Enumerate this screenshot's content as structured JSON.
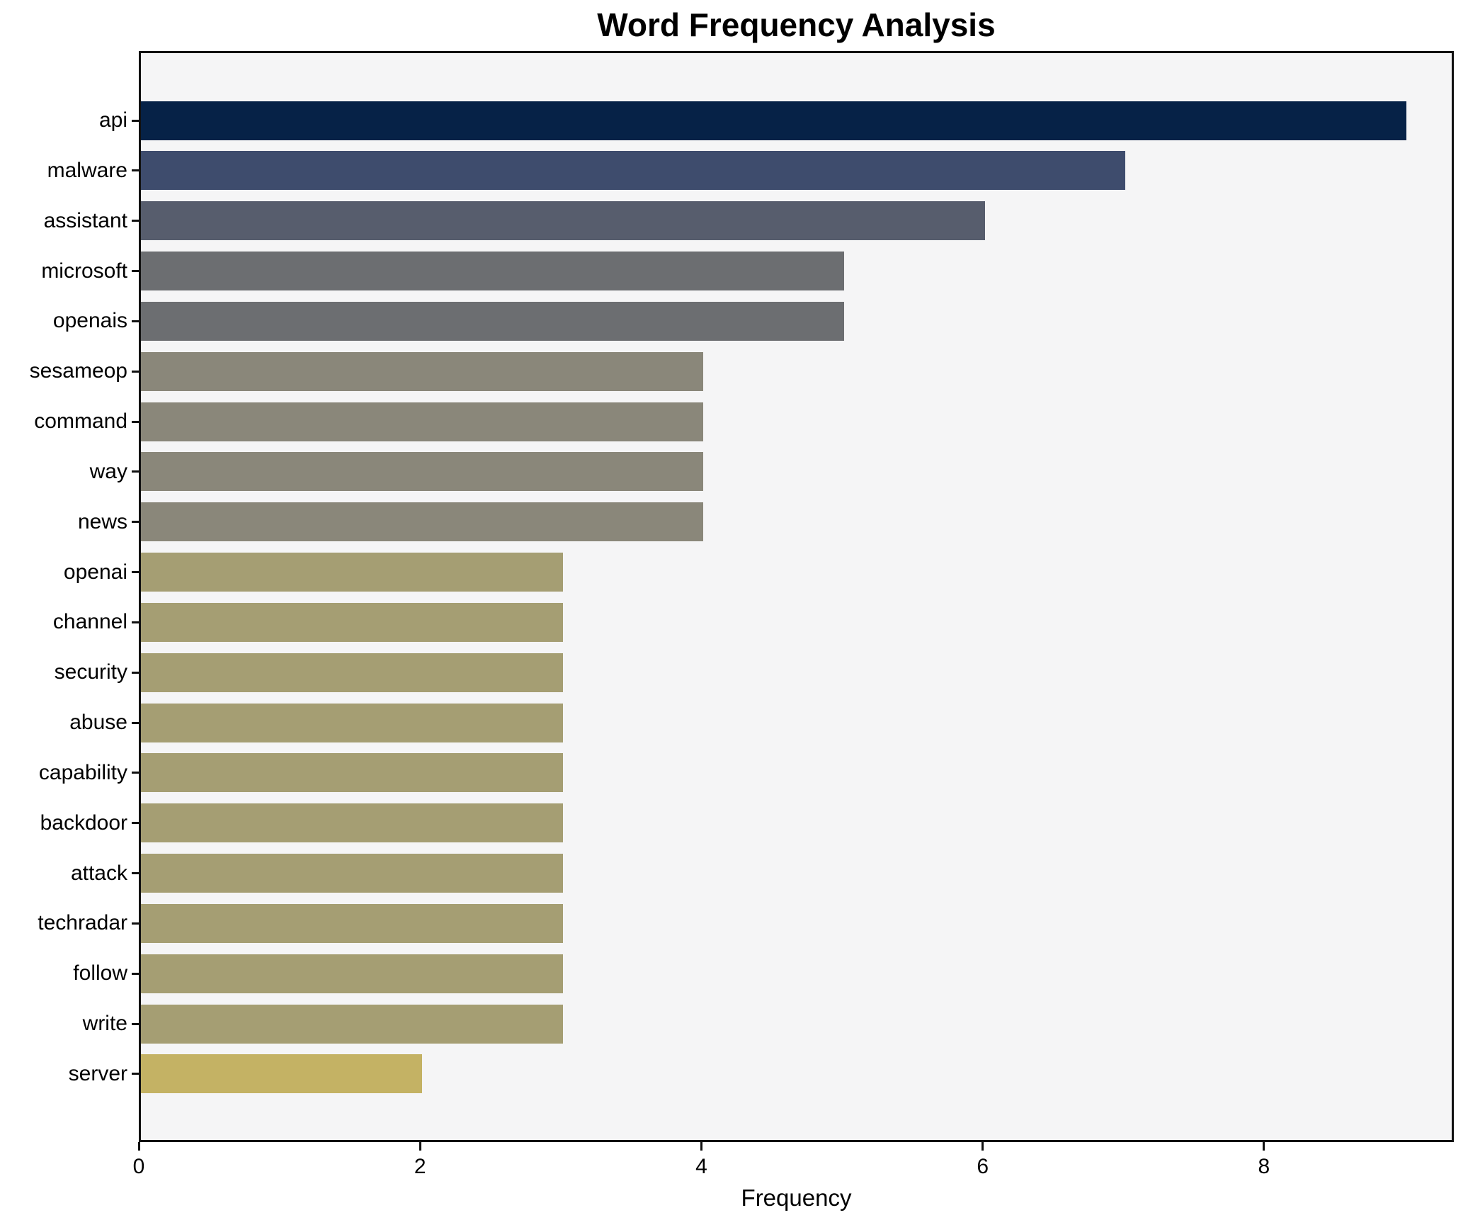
{
  "chart_data": {
    "type": "bar",
    "orientation": "horizontal",
    "title": "Word Frequency Analysis",
    "xlabel": "Frequency",
    "ylabel": "",
    "categories": [
      "api",
      "malware",
      "assistant",
      "microsoft",
      "openais",
      "sesameop",
      "command",
      "way",
      "news",
      "openai",
      "channel",
      "security",
      "abuse",
      "capability",
      "backdoor",
      "attack",
      "techradar",
      "follow",
      "write",
      "server"
    ],
    "values": [
      9,
      7,
      6,
      5,
      5,
      4,
      4,
      4,
      4,
      3,
      3,
      3,
      3,
      3,
      3,
      3,
      3,
      3,
      3,
      2
    ],
    "bar_colors": [
      "#062247",
      "#3E4C6D",
      "#575D6D",
      "#6C6E71",
      "#6C6E71",
      "#8A877A",
      "#8A877A",
      "#8A877A",
      "#8A877A",
      "#A59E73",
      "#A59E73",
      "#A59E73",
      "#A59E73",
      "#A59E73",
      "#A59E73",
      "#A59E73",
      "#A59E73",
      "#A59E73",
      "#A59E73",
      "#C4B264"
    ],
    "xlim": [
      0,
      9.35
    ],
    "xticks": [
      0,
      2,
      4,
      6,
      8
    ],
    "xtick_labels": [
      "0",
      "2",
      "4",
      "6",
      "8"
    ],
    "grid": false,
    "legend": "none",
    "plot_background": "#f5f5f6",
    "figure_background": "#ffffff",
    "spine_color": "#111111",
    "colormap": "cividis"
  }
}
